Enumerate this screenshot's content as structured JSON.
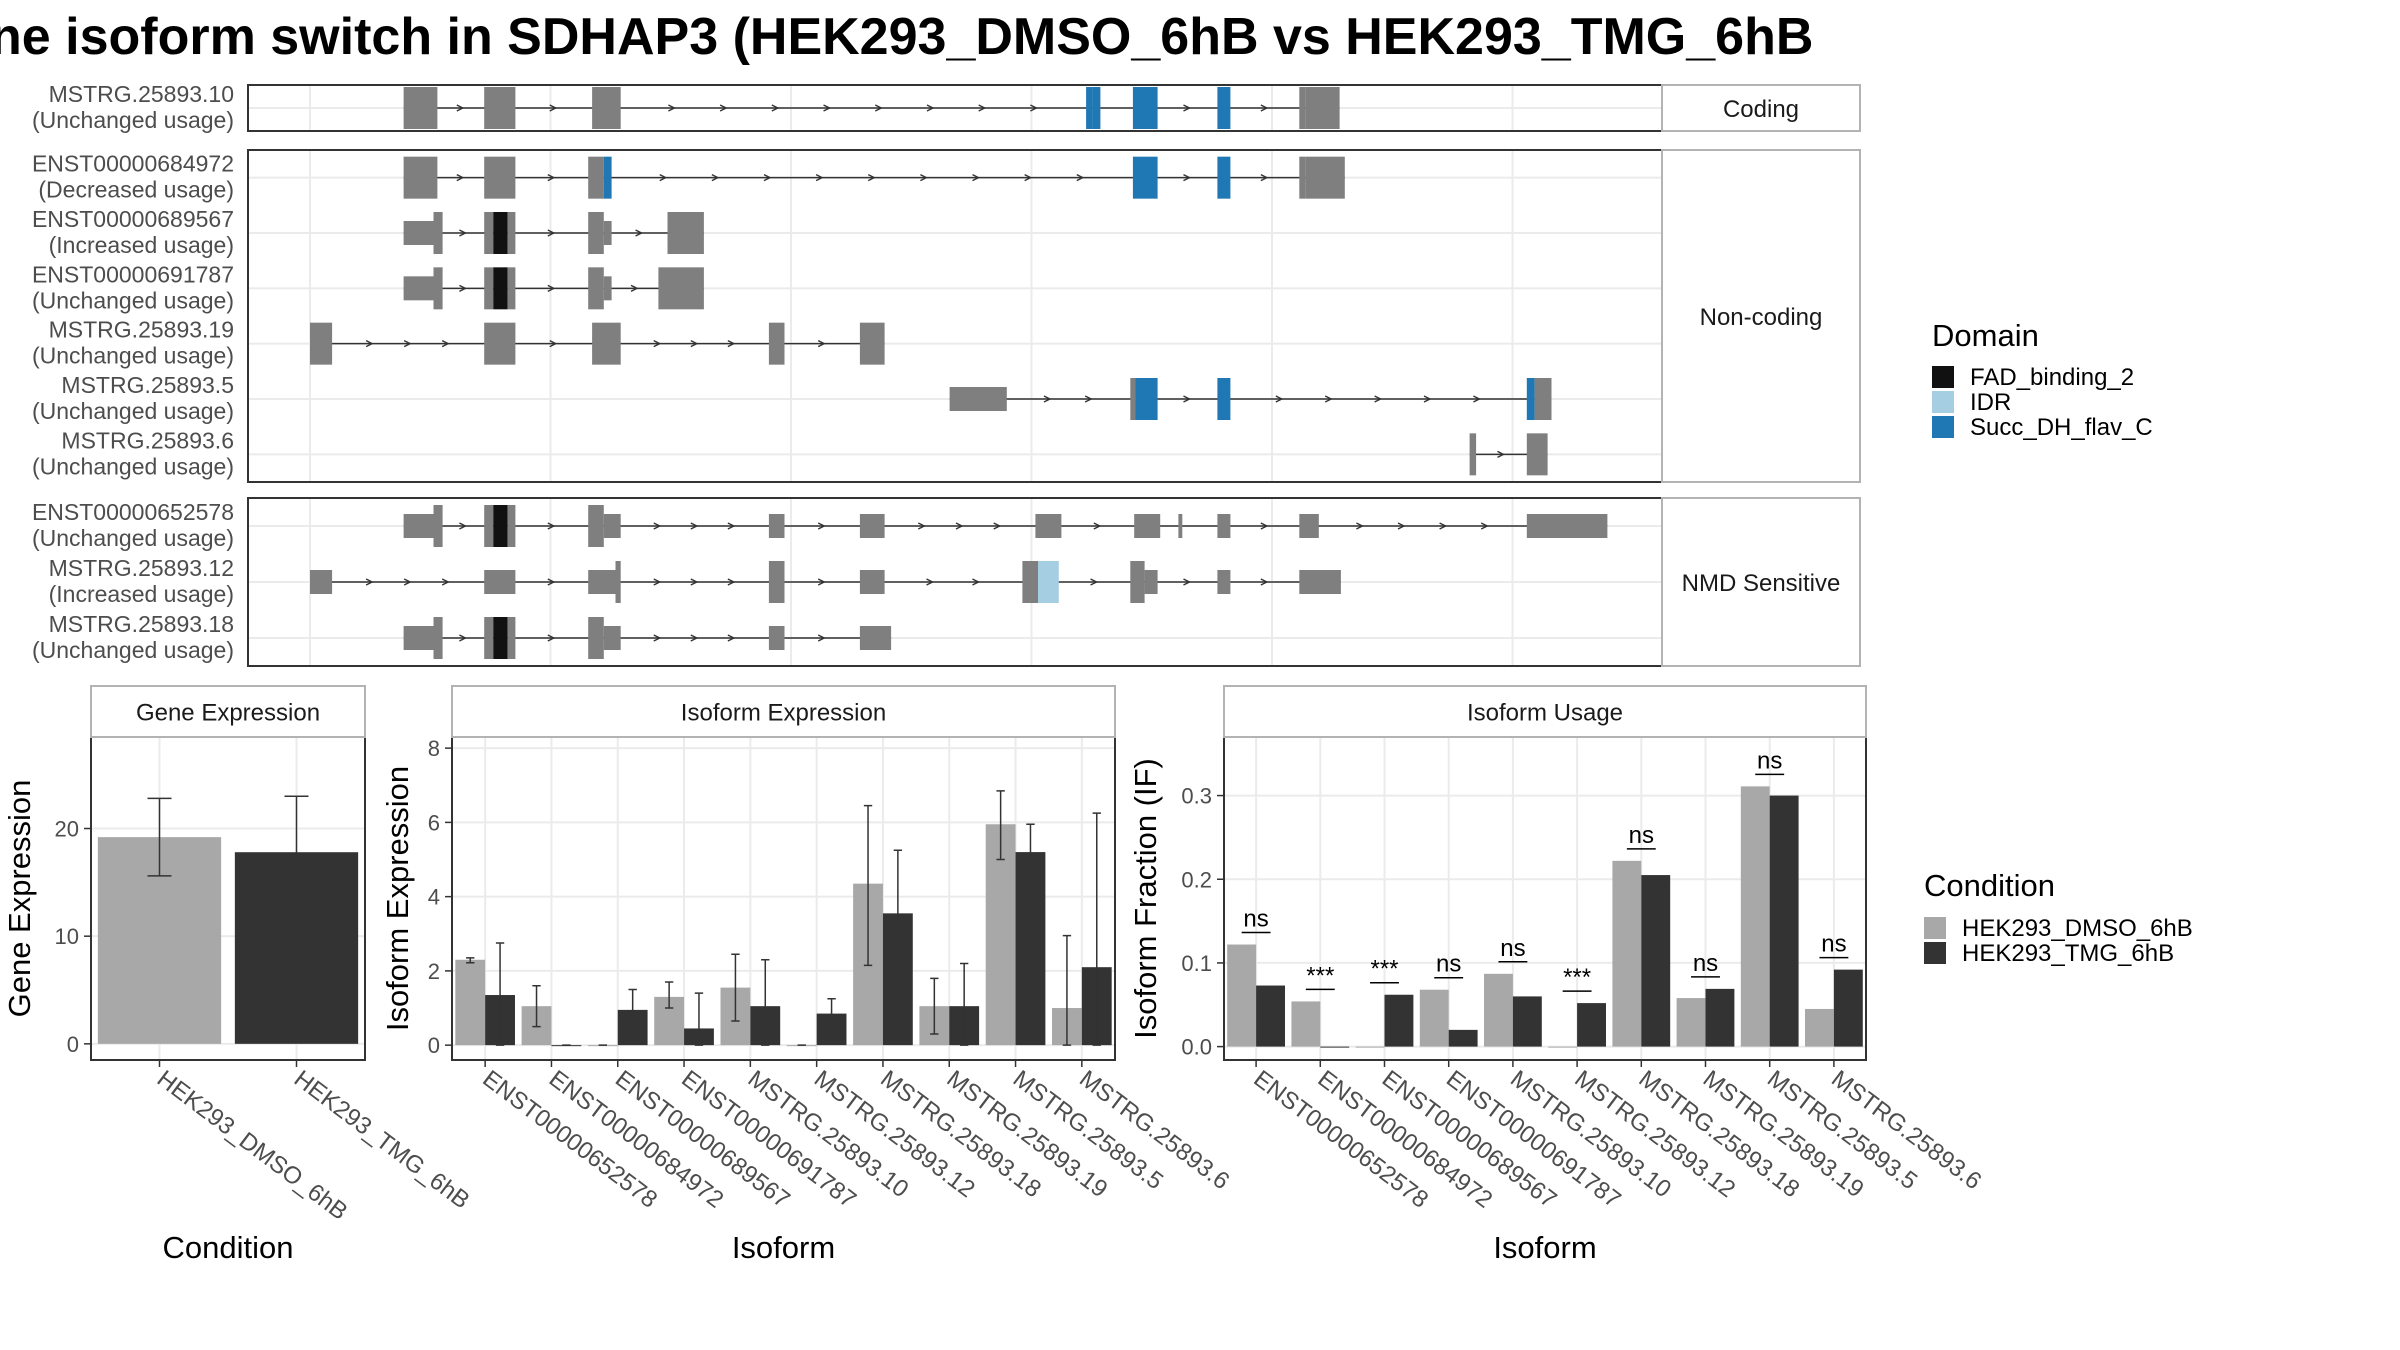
{
  "title": "ne isoform switch in SDHAP3 (HEK293_DMSO_6hB vs HEK293_TMG_6hB",
  "colors": {
    "exon": "#7f7f7f",
    "FAD_binding_2": "#111111",
    "IDR": "#a6cee3",
    "Succ_DH_flav_C": "#1f78b4",
    "cond1": "#a8a8a8",
    "cond2": "#333333",
    "panel_border": "#333333",
    "strip_border": "#b3b3b3",
    "grid": "#ebebeb"
  },
  "structure": {
    "x_range": [
      0,
      100
    ],
    "panels": [
      {
        "label": "Coding",
        "tracks": [
          {
            "id": "MSTRG.25893.10",
            "usage": "(Unchanged usage)",
            "exons": [
              {
                "s": 7.2,
                "e": 9.8
              },
              {
                "s": 13.4,
                "e": 15.8
              },
              {
                "s": 21.7,
                "e": 23.9
              },
              {
                "s": 59.7,
                "e": 60.2,
                "d": "Succ_DH_flav_C"
              },
              {
                "s": 60.2,
                "e": 60.8,
                "d": "Succ_DH_flav_C"
              },
              {
                "s": 63.3,
                "e": 65.2,
                "d": "Succ_DH_flav_C"
              },
              {
                "s": 69.8,
                "e": 70.8,
                "d": "Succ_DH_flav_C"
              },
              {
                "s": 76.1,
                "e": 76.6
              },
              {
                "s": 76.6,
                "e": 79.2
              }
            ]
          }
        ]
      },
      {
        "label": "Non-coding",
        "tracks": [
          {
            "id": "ENST00000684972",
            "usage": "(Decreased usage)",
            "exons": [
              {
                "s": 7.2,
                "e": 9.8
              },
              {
                "s": 13.4,
                "e": 15.8
              },
              {
                "s": 21.4,
                "e": 22.6
              },
              {
                "s": 22.6,
                "e": 23.2,
                "d": "Succ_DH_flav_C"
              },
              {
                "s": 63.3,
                "e": 65.2,
                "d": "Succ_DH_flav_C"
              },
              {
                "s": 69.8,
                "e": 70.8,
                "d": "Succ_DH_flav_C"
              },
              {
                "s": 76.1,
                "e": 76.6
              },
              {
                "s": 76.6,
                "e": 79.6
              }
            ]
          },
          {
            "id": "ENST00000689567",
            "usage": "(Increased usage)",
            "exons": [
              {
                "s": 7.2,
                "e": 9.5,
                "h": "s"
              },
              {
                "s": 9.5,
                "e": 10.2
              },
              {
                "s": 13.4,
                "e": 14.1
              },
              {
                "s": 14.1,
                "e": 15.2,
                "d": "FAD_binding_2"
              },
              {
                "s": 15.2,
                "e": 15.8
              },
              {
                "s": 21.4,
                "e": 22.6
              },
              {
                "s": 22.6,
                "e": 23.2,
                "h": "s"
              },
              {
                "s": 27.5,
                "e": 30.3
              }
            ]
          },
          {
            "id": "ENST00000691787",
            "usage": "(Unchanged usage)",
            "exons": [
              {
                "s": 7.2,
                "e": 9.5,
                "h": "s"
              },
              {
                "s": 9.5,
                "e": 10.2
              },
              {
                "s": 13.4,
                "e": 14.1
              },
              {
                "s": 14.1,
                "e": 15.2,
                "d": "FAD_binding_2"
              },
              {
                "s": 15.2,
                "e": 15.8
              },
              {
                "s": 21.4,
                "e": 22.6
              },
              {
                "s": 22.6,
                "e": 23.2,
                "h": "s"
              },
              {
                "s": 26.8,
                "e": 30.3
              }
            ]
          },
          {
            "id": "MSTRG.25893.19",
            "usage": "(Unchanged usage)",
            "exons": [
              {
                "s": 0,
                "e": 1.7
              },
              {
                "s": 13.4,
                "e": 15.8
              },
              {
                "s": 21.7,
                "e": 23.9
              },
              {
                "s": 35.3,
                "e": 36.5
              },
              {
                "s": 42.3,
                "e": 44.2
              }
            ]
          },
          {
            "id": "MSTRG.25893.5",
            "usage": "(Unchanged usage)",
            "exons": [
              {
                "s": 49.2,
                "e": 53.6,
                "h": "s"
              },
              {
                "s": 63.1,
                "e": 63.5
              },
              {
                "s": 63.5,
                "e": 65.2,
                "d": "Succ_DH_flav_C"
              },
              {
                "s": 69.8,
                "e": 70.8,
                "d": "Succ_DH_flav_C"
              },
              {
                "s": 93.6,
                "e": 94.2,
                "d": "Succ_DH_flav_C"
              },
              {
                "s": 94.2,
                "e": 95.5
              }
            ]
          },
          {
            "id": "MSTRG.25893.6",
            "usage": "(Unchanged usage)",
            "exons": [
              {
                "s": 89.2,
                "e": 89.7
              },
              {
                "s": 93.6,
                "e": 95.2
              }
            ]
          }
        ]
      },
      {
        "label": "NMD Sensitive",
        "tracks": [
          {
            "id": "ENST00000652578",
            "usage": "(Unchanged usage)",
            "exons": [
              {
                "s": 7.2,
                "e": 9.5,
                "h": "s"
              },
              {
                "s": 9.5,
                "e": 10.2
              },
              {
                "s": 13.4,
                "e": 14.1
              },
              {
                "s": 14.1,
                "e": 15.2,
                "d": "FAD_binding_2"
              },
              {
                "s": 15.2,
                "e": 15.8
              },
              {
                "s": 21.4,
                "e": 22.6
              },
              {
                "s": 22.6,
                "e": 23.9,
                "h": "s"
              },
              {
                "s": 35.3,
                "e": 36.5,
                "h": "s"
              },
              {
                "s": 42.3,
                "e": 44.2,
                "h": "s"
              },
              {
                "s": 55.8,
                "e": 57.8,
                "h": "s"
              },
              {
                "s": 66.8,
                "e": 67.1,
                "h": "s"
              },
              {
                "s": 63.4,
                "e": 65.4,
                "h": "s"
              },
              {
                "s": 69.8,
                "e": 70.8,
                "h": "s"
              },
              {
                "s": 76.1,
                "e": 77.6,
                "h": "s"
              },
              {
                "s": 93.6,
                "e": 99.8,
                "h": "s"
              }
            ]
          },
          {
            "id": "MSTRG.25893.12",
            "usage": "(Increased usage)",
            "exons": [
              {
                "s": 0,
                "e": 1.7,
                "h": "s"
              },
              {
                "s": 13.4,
                "e": 15.8,
                "h": "s"
              },
              {
                "s": 21.4,
                "e": 23.5,
                "h": "s"
              },
              {
                "s": 23.5,
                "e": 23.9
              },
              {
                "s": 35.3,
                "e": 36.5
              },
              {
                "s": 42.3,
                "e": 44.2,
                "h": "s"
              },
              {
                "s": 54.8,
                "e": 56.0
              },
              {
                "s": 56.0,
                "e": 57.6,
                "d": "IDR"
              },
              {
                "s": 63.1,
                "e": 64.2
              },
              {
                "s": 64.2,
                "e": 65.2,
                "h": "s"
              },
              {
                "s": 69.8,
                "e": 70.8,
                "h": "s"
              },
              {
                "s": 76.1,
                "e": 79.3,
                "h": "s"
              }
            ]
          },
          {
            "id": "MSTRG.25893.18",
            "usage": "(Unchanged usage)",
            "exons": [
              {
                "s": 7.2,
                "e": 9.5,
                "h": "s"
              },
              {
                "s": 9.5,
                "e": 10.2
              },
              {
                "s": 13.4,
                "e": 14.1
              },
              {
                "s": 14.1,
                "e": 15.2,
                "d": "FAD_binding_2"
              },
              {
                "s": 15.2,
                "e": 15.8
              },
              {
                "s": 21.4,
                "e": 22.6
              },
              {
                "s": 22.6,
                "e": 23.9,
                "h": "s"
              },
              {
                "s": 35.3,
                "e": 36.5,
                "h": "s"
              },
              {
                "s": 42.3,
                "e": 44.7,
                "h": "s"
              }
            ]
          }
        ]
      }
    ]
  },
  "legend_domain": {
    "title": "Domain",
    "items": [
      {
        "name": "FAD_binding_2",
        "color": "#111111"
      },
      {
        "name": "IDR",
        "color": "#a6cee3"
      },
      {
        "name": "Succ_DH_flav_C",
        "color": "#1f78b4"
      }
    ]
  },
  "legend_condition": {
    "title": "Condition",
    "items": [
      {
        "name": "HEK293_DMSO_6hB",
        "color": "#a8a8a8"
      },
      {
        "name": "HEK293_TMG_6hB",
        "color": "#333333"
      }
    ]
  },
  "chart_data": [
    {
      "type": "bar",
      "title": "Gene Expression",
      "xlabel": "Condition",
      "ylabel": "Gene Expression",
      "categories": [
        "HEK293_DMSO_6hB",
        "HEK293_TMG_6hB"
      ],
      "values": [
        19.2,
        17.8
      ],
      "error": [
        [
          15.6,
          22.8
        ],
        [
          12.6,
          23.0
        ]
      ],
      "ylim": [
        -1.5,
        28.5
      ],
      "yticks": [
        0,
        10,
        20
      ]
    },
    {
      "type": "bar",
      "title": "Isoform Expression",
      "xlabel": "Isoform",
      "ylabel": "Isoform Expression",
      "categories": [
        "ENST00000652578",
        "ENST00000684972",
        "ENST00000689567",
        "ENST00000691787",
        "MSTRG.25893.10",
        "MSTRG.25893.12",
        "MSTRG.25893.18",
        "MSTRG.25893.19",
        "MSTRG.25893.5",
        "MSTRG.25893.6"
      ],
      "series": [
        {
          "name": "HEK293_DMSO_6hB",
          "values": [
            2.3,
            1.05,
            0,
            1.3,
            1.55,
            0,
            4.35,
            1.05,
            5.95,
            1.0
          ],
          "error": [
            [
              2.22,
              2.35
            ],
            [
              0.5,
              1.6
            ],
            [
              0,
              0
            ],
            [
              1.0,
              1.7
            ],
            [
              0.65,
              2.45
            ],
            [
              0,
              0
            ],
            [
              2.15,
              6.45
            ],
            [
              0.3,
              1.8
            ],
            [
              5.0,
              6.85
            ],
            [
              0,
              2.95
            ]
          ]
        },
        {
          "name": "HEK293_TMG_6hB",
          "values": [
            1.35,
            0,
            0.95,
            0.45,
            1.05,
            0.85,
            3.55,
            1.05,
            5.2,
            2.1
          ],
          "error": [
            [
              0,
              2.75
            ],
            [
              0,
              0
            ],
            [
              0.35,
              1.5
            ],
            [
              0,
              1.4
            ],
            [
              0,
              2.3
            ],
            [
              0.45,
              1.25
            ],
            [
              1.85,
              5.25
            ],
            [
              0,
              2.2
            ],
            [
              4.45,
              5.95
            ],
            [
              0,
              6.25
            ]
          ]
        }
      ],
      "ylim": [
        -0.4,
        8.3
      ],
      "yticks": [
        0,
        2,
        4,
        6,
        8
      ]
    },
    {
      "type": "bar",
      "title": "Isoform Usage",
      "xlabel": "Isoform",
      "ylabel": "Isoform Fraction (IF)",
      "categories": [
        "ENST00000652578",
        "ENST00000684972",
        "ENST00000689567",
        "ENST00000691787",
        "MSTRG.25893.10",
        "MSTRG.25893.12",
        "MSTRG.25893.18",
        "MSTRG.25893.19",
        "MSTRG.25893.5",
        "MSTRG.25893.6"
      ],
      "series": [
        {
          "name": "HEK293_DMSO_6hB",
          "values": [
            0.122,
            0.054,
            0,
            0.068,
            0.087,
            0,
            0.222,
            0.058,
            0.311,
            0.045
          ]
        },
        {
          "name": "HEK293_TMG_6hB",
          "values": [
            0.073,
            0,
            0.062,
            0.02,
            0.06,
            0.052,
            0.205,
            0.069,
            0.3,
            0.092
          ]
        }
      ],
      "significance": [
        "ns",
        "***",
        "***",
        "ns",
        "ns",
        "***",
        "ns",
        "ns",
        "ns",
        "ns"
      ],
      "ylim": [
        -0.016,
        0.37
      ],
      "yticks": [
        0.0,
        0.1,
        0.2,
        0.3
      ],
      "ytick_labels": [
        "0.0",
        "0.1",
        "0.2",
        "0.3"
      ]
    }
  ]
}
